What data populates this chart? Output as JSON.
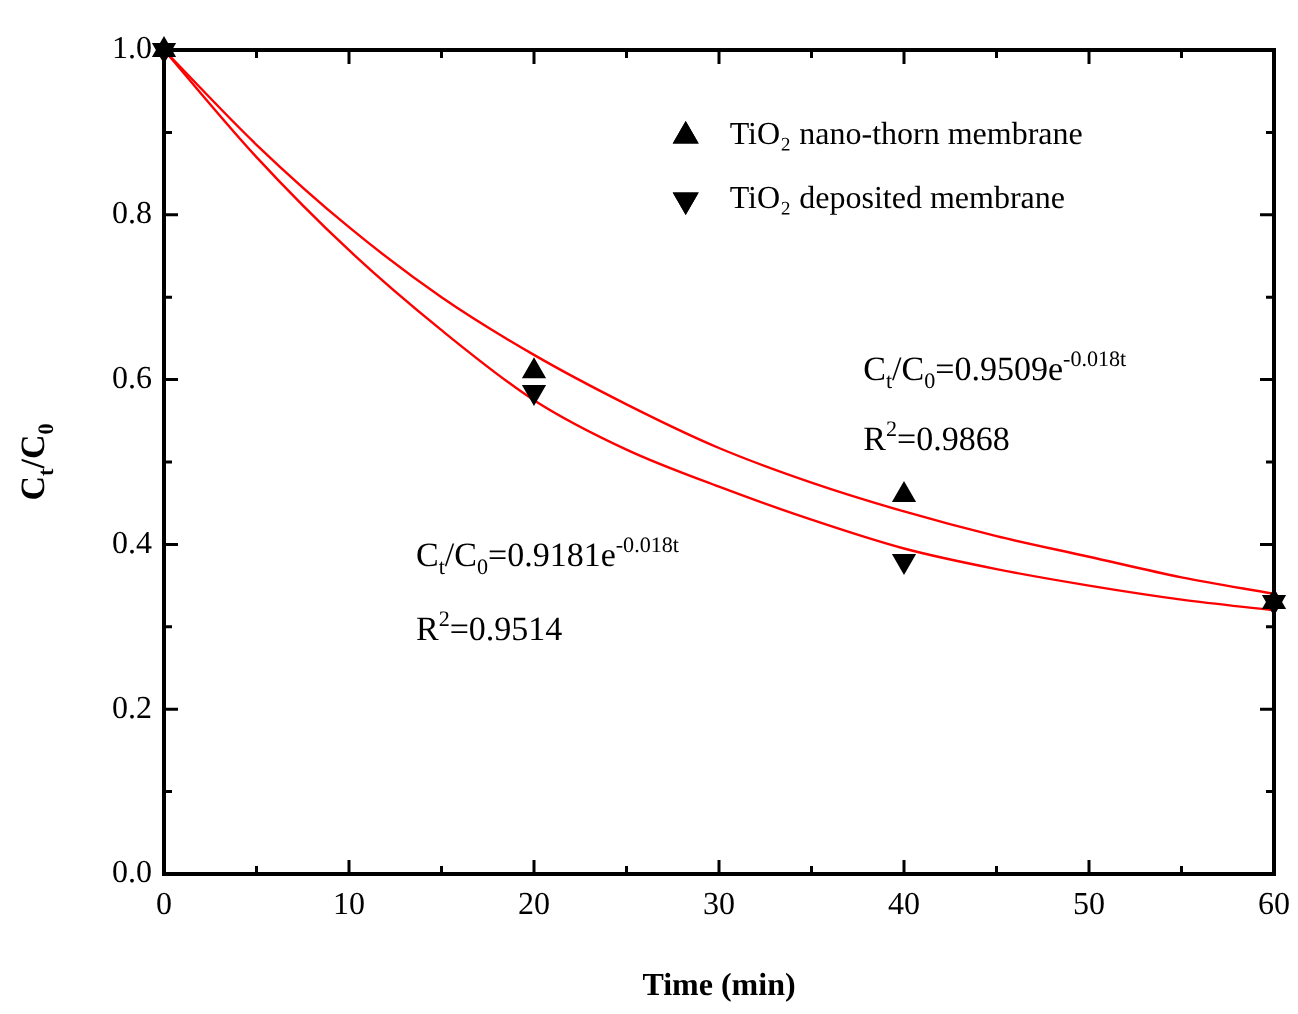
{
  "chart_data": {
    "type": "scatter",
    "xlabel": "Time (min)",
    "ylabel": "C$_{t}$/C$_{0}$",
    "xlim": [
      0,
      60
    ],
    "ylim": [
      0,
      1
    ],
    "xticks": [
      0,
      {
        "value": 5,
        "label": null
      },
      10,
      {
        "value": 15,
        "label": null
      },
      20,
      {
        "value": 25,
        "label": null
      },
      30,
      {
        "value": 35,
        "label": null
      },
      40,
      {
        "value": 45,
        "label": null
      },
      50,
      {
        "value": 55,
        "label": null
      },
      60
    ],
    "yticks": [
      {
        "value": 0,
        "label": "0.0"
      },
      {
        "value": 0.1,
        "label": null
      },
      {
        "value": 0.2,
        "label": "0.2"
      },
      {
        "value": 0.3,
        "label": null
      },
      {
        "value": 0.4,
        "label": "0.4"
      },
      {
        "value": 0.5,
        "label": null
      },
      {
        "value": 0.6,
        "label": "0.6"
      },
      {
        "value": 0.7,
        "label": null
      },
      {
        "value": 0.8,
        "label": "0.8"
      },
      {
        "value": 0.9,
        "label": null
      },
      {
        "value": 1,
        "label": "1.0"
      }
    ],
    "x": [
      0,
      20,
      40,
      60
    ],
    "legend": "top right",
    "grid": false,
    "series": [
      {
        "name": "TiO₂ nano-thorn membrane",
        "type": "scatter",
        "marker": "triangle",
        "color": "#000000",
        "values": [
          1.0,
          0.61,
          0.46,
          0.33
        ]
      },
      {
        "name": "TiO₂ deposited membrane",
        "type": "scatter",
        "marker": "triangle-down",
        "color": "#000000",
        "values": [
          1.0,
          0.585,
          0.38,
          0.33
        ]
      },
      {
        "type": "line",
        "marker": "none",
        "color": "#ff0000",
        "x": [
          0,
          5,
          10,
          15,
          20,
          25,
          30,
          35,
          40,
          45,
          50,
          55,
          60
        ],
        "values": [
          1.0,
          0.885,
          0.785,
          0.7,
          0.63,
          0.57,
          0.517,
          0.475,
          0.44,
          0.41,
          0.385,
          0.36,
          0.34
        ]
      },
      {
        "type": "line",
        "marker": "none",
        "color": "#ff0000",
        "x": [
          0,
          5,
          10,
          15,
          20,
          25,
          30,
          35,
          40,
          45,
          50,
          55,
          60
        ],
        "values": [
          1.0,
          0.87,
          0.757,
          0.66,
          0.575,
          0.515,
          0.47,
          0.43,
          0.395,
          0.37,
          0.35,
          0.333,
          0.32
        ]
      }
    ],
    "annotations": [
      "C$_{t}$/C$_{0}$=0.9509e$^{-0.018t}$",
      "R$^{2}$=0.9868",
      "C$_{t}$/C$_{0}$=0.9181e$^{-0.018t}$",
      "R$^{2}$=0.9514"
    ]
  }
}
